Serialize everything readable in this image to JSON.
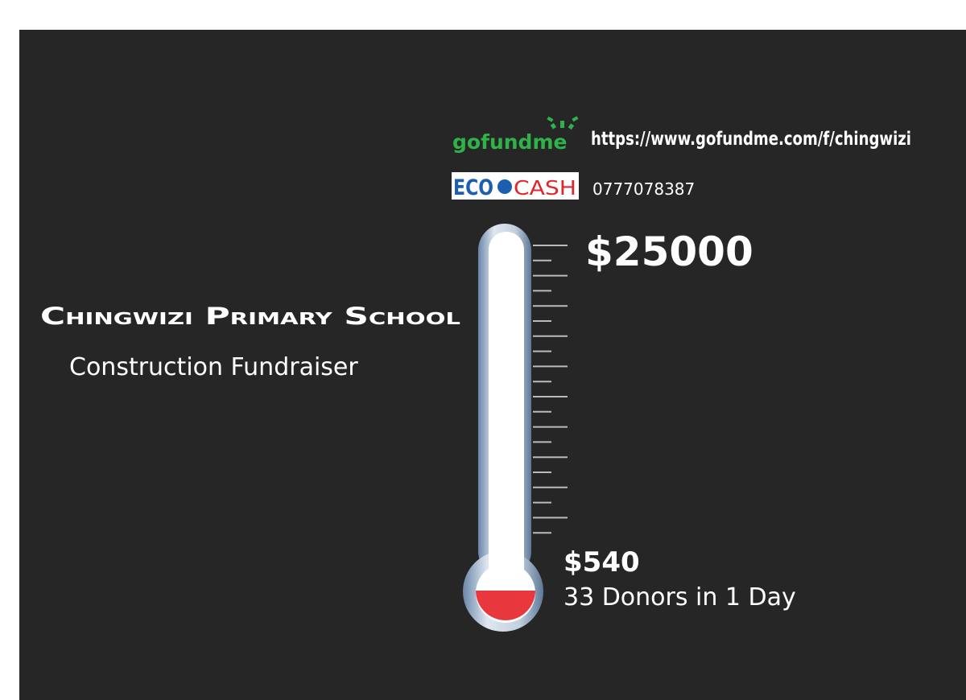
{
  "links": {
    "gofundme": {
      "logo": "gofundme",
      "url": "https://www.gofundme.com/f/chingwizi"
    },
    "ecocash": {
      "logo_left": "ECO",
      "logo_right": "CASH",
      "number": "0777078387"
    }
  },
  "goal": "$25000",
  "school": {
    "title": "Chingwizi Primary School",
    "subtitle": "Construction Fundraiser"
  },
  "raised": {
    "amount": "$540",
    "note": "33 Donors in 1 Day"
  }
}
